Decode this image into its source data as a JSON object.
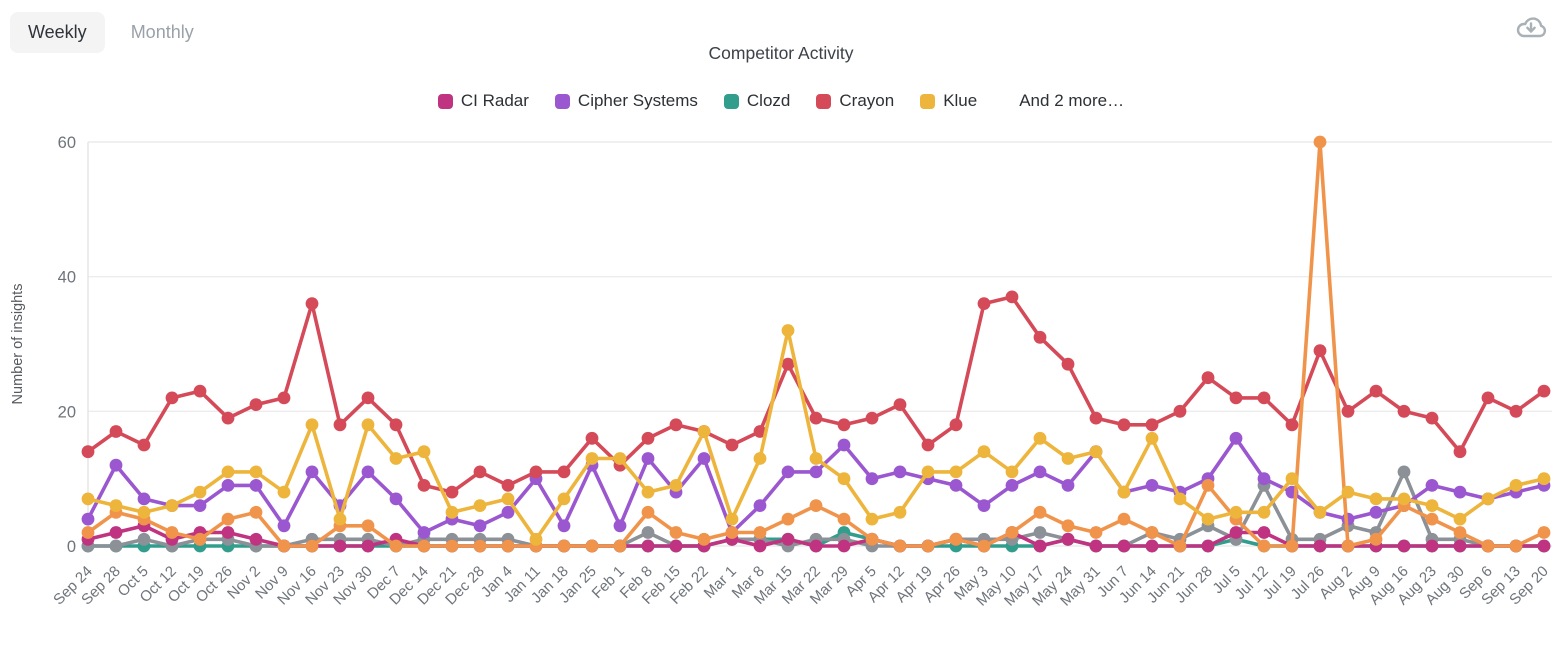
{
  "toolbar": {
    "weekly_label": "Weekly",
    "monthly_label": "Monthly",
    "active_tab": "Weekly"
  },
  "icons": {
    "download": "cloud-download-icon"
  },
  "chart_data": {
    "type": "line",
    "title": "Competitor Activity",
    "ylabel": "Number of insights",
    "ylim": [
      0,
      60
    ],
    "yticks": [
      0,
      20,
      40,
      60
    ],
    "grid": true,
    "legend_position": "top",
    "legend_more_label": "And 2 more…",
    "colors": {
      "grid_line": "#ececec",
      "axis_line": "#e3e3e3",
      "tick_text": "#6e747a",
      "axis_title_text": "#565b60"
    },
    "categories": [
      "Sep 24",
      "Sep 28",
      "Oct 5",
      "Oct 12",
      "Oct 19",
      "Oct 26",
      "Nov 2",
      "Nov 9",
      "Nov 16",
      "Nov 23",
      "Nov 30",
      "Dec 7",
      "Dec 14",
      "Dec 21",
      "Dec 28",
      "Jan 4",
      "Jan 11",
      "Jan 18",
      "Jan 25",
      "Feb 1",
      "Feb 8",
      "Feb 15",
      "Feb 22",
      "Mar 1",
      "Mar 8",
      "Mar 15",
      "Mar 22",
      "Mar 29",
      "Apr 5",
      "Apr 12",
      "Apr 19",
      "Apr 26",
      "May 3",
      "May 10",
      "May 17",
      "May 24",
      "May 31",
      "Jun 7",
      "Jun 14",
      "Jun 21",
      "Jun 28",
      "Jul 5",
      "Jul 12",
      "Jul 19",
      "Jul 26",
      "Aug 2",
      "Aug 9",
      "Aug 16",
      "Aug 23",
      "Aug 30",
      "Sep 6",
      "Sep 13",
      "Sep 20"
    ],
    "series": [
      {
        "name": "CI Radar",
        "color": "#bf3381",
        "in_legend": true,
        "values": [
          1,
          2,
          3,
          1,
          2,
          2,
          1,
          0,
          0,
          0,
          0,
          1,
          0,
          0,
          0,
          0,
          0,
          0,
          0,
          0,
          0,
          0,
          0,
          1,
          0,
          1,
          0,
          0,
          1,
          0,
          0,
          1,
          0,
          2,
          0,
          1,
          0,
          0,
          0,
          0,
          0,
          2,
          2,
          0,
          0,
          0,
          0,
          0,
          0,
          0,
          0,
          0,
          0
        ]
      },
      {
        "name": "Cipher Systems",
        "color": "#9a57d0",
        "in_legend": true,
        "values": [
          4,
          12,
          7,
          6,
          6,
          9,
          9,
          3,
          11,
          6,
          11,
          7,
          2,
          4,
          3,
          5,
          10,
          3,
          12,
          3,
          13,
          8,
          13,
          2,
          6,
          11,
          11,
          15,
          10,
          11,
          10,
          9,
          6,
          9,
          11,
          9,
          14,
          8,
          9,
          8,
          10,
          16,
          10,
          8,
          5,
          4,
          5,
          6,
          9,
          8,
          7,
          8,
          9
        ]
      },
      {
        "name": "Clozd",
        "color": "#319d8d",
        "in_legend": true,
        "values": [
          0,
          0,
          0,
          0,
          0,
          0,
          0,
          0,
          0,
          0,
          0,
          0,
          0,
          0,
          0,
          0,
          0,
          0,
          0,
          0,
          0,
          0,
          0,
          1,
          1,
          1,
          0,
          2,
          1,
          0,
          0,
          0,
          0,
          0,
          0,
          1,
          0,
          0,
          0,
          0,
          0,
          1,
          0,
          0,
          0,
          0,
          0,
          0,
          0,
          0,
          0,
          0,
          0
        ]
      },
      {
        "name": "Crayon",
        "color": "#d54a58",
        "in_legend": true,
        "values": [
          14,
          17,
          15,
          22,
          23,
          19,
          21,
          22,
          36,
          18,
          22,
          18,
          9,
          8,
          11,
          9,
          11,
          11,
          16,
          12,
          16,
          18,
          17,
          15,
          17,
          27,
          19,
          18,
          19,
          21,
          15,
          18,
          36,
          37,
          31,
          27,
          19,
          18,
          18,
          20,
          25,
          22,
          22,
          18,
          29,
          20,
          23,
          20,
          19,
          14,
          22,
          20,
          23
        ]
      },
      {
        "name": "Klue",
        "color": "#eeb53d",
        "in_legend": true,
        "values": [
          7,
          6,
          5,
          6,
          8,
          11,
          11,
          8,
          18,
          4,
          18,
          13,
          14,
          5,
          6,
          7,
          1,
          7,
          13,
          13,
          8,
          9,
          17,
          4,
          13,
          32,
          13,
          10,
          4,
          5,
          11,
          11,
          14,
          11,
          16,
          13,
          14,
          8,
          16,
          7,
          4,
          5,
          5,
          10,
          5,
          8,
          7,
          7,
          6,
          4,
          7,
          9,
          10
        ]
      },
      {
        "name": "hidden-series-1",
        "color": "#f0944c",
        "in_legend": false,
        "values": [
          2,
          5,
          4,
          2,
          1,
          4,
          5,
          0,
          0,
          3,
          3,
          0,
          0,
          0,
          0,
          0,
          0,
          0,
          0,
          0,
          5,
          2,
          1,
          2,
          2,
          4,
          6,
          4,
          1,
          0,
          0,
          1,
          0,
          2,
          5,
          3,
          2,
          4,
          2,
          0,
          9,
          4,
          0,
          0,
          60,
          0,
          1,
          6,
          4,
          2,
          0,
          0,
          2
        ]
      },
      {
        "name": "hidden-series-2",
        "color": "#8c9197",
        "in_legend": false,
        "values": [
          0,
          0,
          1,
          0,
          1,
          1,
          0,
          0,
          1,
          1,
          1,
          0,
          1,
          1,
          1,
          1,
          0,
          0,
          0,
          0,
          2,
          0,
          0,
          1,
          1,
          0,
          1,
          1,
          0,
          0,
          0,
          1,
          1,
          1,
          2,
          1,
          0,
          0,
          2,
          1,
          3,
          1,
          9,
          1,
          1,
          3,
          2,
          11,
          1,
          1,
          0,
          0,
          0
        ]
      }
    ]
  }
}
